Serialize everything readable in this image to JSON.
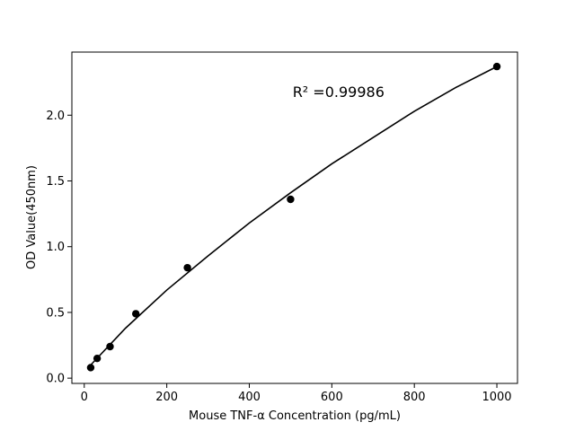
{
  "chart_data": {
    "type": "scatter",
    "title": "",
    "xlabel": "Mouse TNF-α Concentration (pg/mL)",
    "ylabel": "OD Value(450nm)",
    "xlim": [
      -30,
      1050
    ],
    "ylim": [
      -0.04,
      2.48
    ],
    "x_ticks": [
      0,
      200,
      400,
      600,
      800,
      1000
    ],
    "y_ticks": [
      0.0,
      0.5,
      1.0,
      1.5,
      2.0
    ],
    "x_tick_labels": [
      "0",
      "200",
      "400",
      "600",
      "800",
      "1000"
    ],
    "y_tick_labels": [
      "0.0",
      "0.5",
      "1.0",
      "1.5",
      "2.0"
    ],
    "grid": false,
    "points": [
      {
        "x": 15.6,
        "y": 0.08
      },
      {
        "x": 31.25,
        "y": 0.15
      },
      {
        "x": 62.5,
        "y": 0.24
      },
      {
        "x": 125,
        "y": 0.49
      },
      {
        "x": 250,
        "y": 0.84
      },
      {
        "x": 500,
        "y": 1.36
      },
      {
        "x": 1000,
        "y": 2.37
      }
    ],
    "fit_curve": {
      "type": "polynomial",
      "degree": 2,
      "x_range": [
        15.6,
        1000
      ],
      "points": [
        {
          "x": 15.6,
          "y": 0.1
        },
        {
          "x": 100,
          "y": 0.38
        },
        {
          "x": 200,
          "y": 0.67
        },
        {
          "x": 300,
          "y": 0.93
        },
        {
          "x": 400,
          "y": 1.18
        },
        {
          "x": 500,
          "y": 1.41
        },
        {
          "x": 600,
          "y": 1.63
        },
        {
          "x": 700,
          "y": 1.83
        },
        {
          "x": 800,
          "y": 2.03
        },
        {
          "x": 900,
          "y": 2.21
        },
        {
          "x": 1000,
          "y": 2.37
        }
      ]
    },
    "annotations": [
      {
        "text": "R² =0.99986",
        "x": 505,
        "y": 2.14
      }
    ],
    "colors": {
      "points": "#000000",
      "line": "#000000"
    }
  }
}
